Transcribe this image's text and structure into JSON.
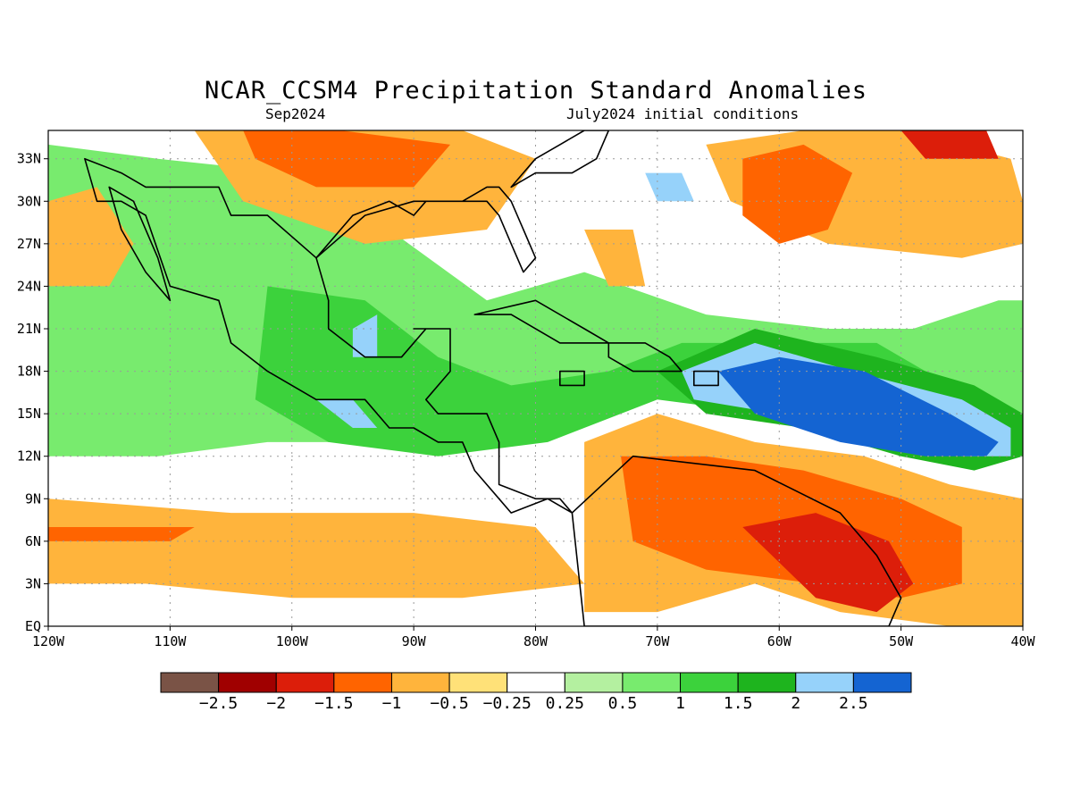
{
  "title": "NCAR_CCSM4 Precipitation Standard Anomalies",
  "subtitle_left": "Sep2024",
  "subtitle_right": "July2024 initial conditions",
  "map": {
    "lon_range": [
      -120,
      -40
    ],
    "lat_range": [
      0,
      35
    ],
    "gridlines": "dotted",
    "lon_ticks": [
      {
        "value": -120,
        "label": "120W"
      },
      {
        "value": -110,
        "label": "110W"
      },
      {
        "value": -100,
        "label": "100W"
      },
      {
        "value": -90,
        "label": "90W"
      },
      {
        "value": -80,
        "label": "80W"
      },
      {
        "value": -70,
        "label": "70W"
      },
      {
        "value": -60,
        "label": "60W"
      },
      {
        "value": -50,
        "label": "50W"
      },
      {
        "value": -40,
        "label": "40W"
      }
    ],
    "lat_ticks": [
      {
        "value": 0,
        "label": "EQ"
      },
      {
        "value": 3,
        "label": "3N"
      },
      {
        "value": 6,
        "label": "6N"
      },
      {
        "value": 9,
        "label": "9N"
      },
      {
        "value": 12,
        "label": "12N"
      },
      {
        "value": 15,
        "label": "15N"
      },
      {
        "value": 18,
        "label": "18N"
      },
      {
        "value": 21,
        "label": "21N"
      },
      {
        "value": 24,
        "label": "24N"
      },
      {
        "value": 27,
        "label": "27N"
      },
      {
        "value": 30,
        "label": "30N"
      },
      {
        "value": 33,
        "label": "33N"
      }
    ]
  },
  "colorbar": {
    "colors": [
      "#7a5346",
      "#a00000",
      "#dc1e0a",
      "#ff6400",
      "#ffb43c",
      "#ffe178",
      "#ffffff",
      "#b4f0a0",
      "#78eb6e",
      "#3cd23c",
      "#1eb41e",
      "#96d2fa",
      "#1464d2"
    ],
    "labels": [
      "−2.5",
      "−2",
      "−1.5",
      "−1",
      "−0.5",
      "−0.25",
      "0.25",
      "0.5",
      "1",
      "1.5",
      "2",
      "2.5"
    ]
  },
  "anomaly_regions": [
    {
      "level": 4,
      "lon": [
        -118,
        -117,
        -109,
        -103,
        -102,
        -104,
        -110,
        -117
      ],
      "lat": [
        22,
        25,
        26,
        22,
        19,
        16,
        15,
        17
      ]
    },
    {
      "level": 3,
      "lon": [
        -115,
        -112,
        -108,
        -104,
        -103,
        -105,
        -109,
        -114
      ],
      "lat": [
        21,
        23,
        24,
        21,
        18,
        16,
        16,
        18
      ]
    },
    {
      "level": 2,
      "lon": [
        -111,
        -109,
        -106,
        -105,
        -106,
        -108,
        -110
      ],
      "lat": [
        20,
        22,
        22,
        19,
        17,
        16,
        17
      ]
    },
    {
      "level": 1,
      "lon": [
        -109,
        -108,
        -107,
        -108
      ],
      "lat": [
        20,
        21,
        19,
        18
      ]
    },
    {
      "level": 8,
      "lon": [
        -120,
        -111,
        -100,
        -92,
        -84,
        -76,
        -66,
        -56,
        -49,
        -42,
        -40,
        -40,
        -45,
        -52,
        -60,
        -68,
        -77,
        -85,
        -94,
        -102,
        -111,
        -120
      ],
      "lat": [
        34,
        33,
        32,
        28,
        23,
        25,
        22,
        21,
        21,
        23,
        23,
        13,
        15,
        16,
        18,
        19,
        17,
        15,
        13,
        13,
        12,
        12
      ]
    },
    {
      "level": 9,
      "lon": [
        -102,
        -94,
        -88,
        -82,
        -74,
        -68,
        -60,
        -52,
        -46,
        -46,
        -53,
        -61,
        -70,
        -79,
        -88,
        -97,
        -103
      ],
      "lat": [
        24,
        23,
        19,
        17,
        18,
        20,
        20,
        20,
        17,
        16,
        14,
        15,
        16,
        13,
        12,
        13,
        16
      ]
    },
    {
      "level": 10,
      "lon": [
        -70,
        -62,
        -52,
        -44,
        -40,
        -40,
        -44,
        -50,
        -58,
        -66
      ],
      "lat": [
        18,
        21,
        19,
        17,
        15,
        12,
        11,
        12,
        14,
        15
      ]
    },
    {
      "level": 11,
      "lon": [
        -68,
        -62,
        -54,
        -45,
        -41,
        -41,
        -45,
        -52,
        -60,
        -67
      ],
      "lat": [
        18,
        20,
        18,
        16,
        14,
        12,
        12,
        13,
        15,
        16
      ]
    },
    {
      "level": 12,
      "lon": [
        -65,
        -60,
        -53,
        -46,
        -42,
        -43,
        -48,
        -55,
        -62
      ],
      "lat": [
        18,
        19,
        18,
        15,
        13,
        12,
        12,
        13,
        15
      ]
    },
    {
      "level": 11,
      "lon": [
        -98,
        -95,
        -93,
        -95
      ],
      "lat": [
        16,
        16,
        14,
        14
      ]
    },
    {
      "level": 11,
      "lon": [
        -95,
        -93,
        -93,
        -95
      ],
      "lat": [
        21,
        22,
        19,
        19
      ]
    },
    {
      "level": 11,
      "lon": [
        -71,
        -68,
        -67,
        -70
      ],
      "lat": [
        32,
        32,
        30,
        30
      ]
    },
    {
      "level": 4,
      "lon": [
        -76,
        -70,
        -62,
        -53,
        -46,
        -40,
        -40,
        -46,
        -55,
        -62,
        -70,
        -76
      ],
      "lat": [
        13,
        15,
        13,
        12,
        10,
        9,
        0,
        0,
        1,
        3,
        1,
        1
      ]
    },
    {
      "level": 3,
      "lon": [
        -73,
        -66,
        -58,
        -50,
        -45,
        -45,
        -50,
        -57,
        -66,
        -72
      ],
      "lat": [
        12,
        12,
        11,
        9,
        7,
        3,
        2,
        3,
        4,
        6
      ]
    },
    {
      "level": 2,
      "lon": [
        -63,
        -57,
        -51,
        -49,
        -52,
        -57
      ],
      "lat": [
        7,
        8,
        6,
        3,
        1,
        2
      ]
    },
    {
      "level": 4,
      "lon": [
        -66,
        -58,
        -50,
        -41,
        -40,
        -40,
        -45,
        -56,
        -64
      ],
      "lat": [
        34,
        35,
        35,
        33,
        30,
        27,
        26,
        27,
        30
      ]
    },
    {
      "level": 3,
      "lon": [
        -63,
        -58,
        -54,
        -56,
        -60,
        -63
      ],
      "lat": [
        33,
        34,
        32,
        28,
        27,
        29
      ]
    },
    {
      "level": 2,
      "lon": [
        -50,
        -43,
        -42,
        -48
      ],
      "lat": [
        35,
        35,
        33,
        33
      ]
    },
    {
      "level": 4,
      "lon": [
        -108,
        -98,
        -86,
        -80,
        -84,
        -94,
        -104
      ],
      "lat": [
        35,
        35,
        35,
        33,
        28,
        27,
        30
      ]
    },
    {
      "level": 3,
      "lon": [
        -104,
        -96,
        -87,
        -90,
        -98,
        -103
      ],
      "lat": [
        35,
        35,
        34,
        31,
        31,
        33
      ]
    },
    {
      "level": 4,
      "lon": [
        -120,
        -105,
        -90,
        -80,
        -76,
        -86,
        -100,
        -112,
        -120
      ],
      "lat": [
        9,
        8,
        8,
        7,
        3,
        2,
        2,
        3,
        3
      ]
    },
    {
      "level": 3,
      "lon": [
        -120,
        -108,
        -110,
        -120
      ],
      "lat": [
        7,
        7,
        6,
        6
      ]
    },
    {
      "level": 4,
      "lon": [
        -120,
        -116,
        -113,
        -115,
        -120
      ],
      "lat": [
        30,
        31,
        27,
        24,
        24
      ]
    },
    {
      "level": 4,
      "lon": [
        -76,
        -72,
        -71,
        -74
      ],
      "lat": [
        28,
        28,
        24,
        24
      ]
    }
  ],
  "land_outlines": [
    {
      "lon": [
        -117,
        -114,
        -112,
        -109,
        -106,
        -105,
        -102,
        -98,
        -97,
        -97,
        -94,
        -91,
        -89,
        -90,
        -87,
        -87,
        -89,
        -89,
        -88,
        -84,
        -83,
        -83,
        -80,
        -78,
        -77,
        -79,
        -82,
        -83,
        -85,
        -86,
        -88,
        -90,
        -92,
        -94,
        -96,
        -98,
        -102,
        -105,
        -106,
        -110,
        -112,
        -114,
        -116,
        -117
      ],
      "lat": [
        33,
        32,
        31,
        31,
        31,
        29,
        29,
        26,
        23,
        21,
        19,
        19,
        21,
        21,
        21,
        18,
        16,
        16,
        15,
        15,
        13,
        10,
        9,
        9,
        8,
        9,
        8,
        9,
        11,
        13,
        13,
        14,
        14,
        16,
        16,
        16,
        18,
        20,
        23,
        24,
        29,
        30,
        30,
        33
      ]
    },
    {
      "lon": [
        -115,
        -113,
        -111,
        -110,
        -112,
        -114,
        -115
      ],
      "lat": [
        31,
        30,
        26,
        23,
        25,
        28,
        31
      ]
    },
    {
      "lon": [
        -98,
        -94,
        -90,
        -88,
        -84,
        -83,
        -82,
        -81,
        -80,
        -81,
        -82,
        -83,
        -84,
        -86,
        -89,
        -90,
        -92,
        -95,
        -98
      ],
      "lat": [
        26,
        29,
        30,
        30,
        30,
        29,
        27,
        25,
        26,
        28,
        30,
        31,
        31,
        30,
        30,
        29,
        30,
        29,
        26
      ]
    },
    {
      "lon": [
        -82,
        -80,
        -78,
        -76,
        -74,
        -75,
        -77,
        -80,
        -82
      ],
      "lat": [
        31,
        33,
        34,
        35,
        35,
        33,
        32,
        32,
        31
      ]
    },
    {
      "lon": [
        -77,
        -72,
        -62,
        -55,
        -52,
        -50,
        -51,
        -54,
        -60,
        -66,
        -71,
        -76
      ],
      "lat": [
        8,
        12,
        11,
        8,
        5,
        2,
        0,
        0,
        0,
        0,
        0,
        0
      ]
    },
    {
      "lon": [
        -85,
        -80,
        -76,
        -74,
        -78,
        -82,
        -85
      ],
      "lat": [
        22,
        23,
        21,
        20,
        20,
        22,
        22
      ]
    },
    {
      "lon": [
        -74,
        -71,
        -69,
        -68,
        -72,
        -74
      ],
      "lat": [
        20,
        20,
        19,
        18,
        18,
        19
      ]
    },
    {
      "lon": [
        -78,
        -76,
        -76,
        -78
      ],
      "lat": [
        18,
        18,
        17,
        17
      ]
    },
    {
      "lon": [
        -67,
        -65,
        -65,
        -67
      ],
      "lat": [
        18,
        18,
        17,
        17
      ]
    }
  ]
}
